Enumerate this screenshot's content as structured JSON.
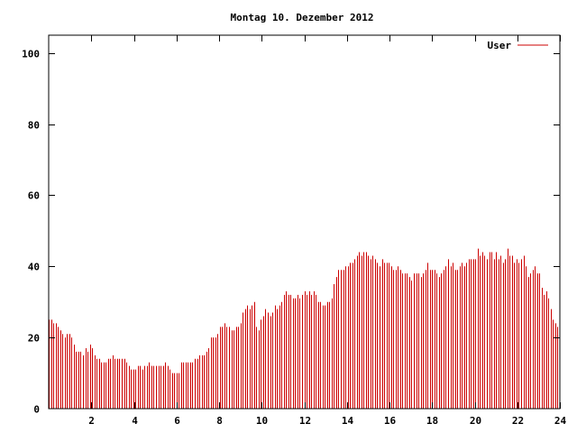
{
  "chart_data": {
    "type": "bar",
    "title": "Montag 10. Dezember 2012",
    "xlabel": "",
    "ylabel": "",
    "xlim": [
      0,
      24
    ],
    "ylim": [
      0,
      105
    ],
    "xticks": [
      2,
      4,
      6,
      8,
      10,
      12,
      14,
      16,
      18,
      20,
      22,
      24
    ],
    "yticks": [
      0,
      20,
      40,
      60,
      80,
      100
    ],
    "grid": false,
    "legend": {
      "position": "top-right",
      "entries": [
        "User"
      ]
    },
    "series": [
      {
        "name": "User",
        "color": "#cc0000",
        "sample_interval_hours": 0.0833,
        "values": [
          25,
          25,
          24,
          24,
          23,
          22,
          21,
          20,
          21,
          21,
          20,
          18,
          16,
          16,
          16,
          15,
          17,
          16,
          18,
          17,
          15,
          14,
          14,
          13,
          13,
          13,
          14,
          14,
          15,
          14,
          14,
          14,
          14,
          14,
          13,
          12,
          11,
          11,
          11,
          12,
          12,
          11,
          12,
          12,
          13,
          12,
          12,
          12,
          12,
          12,
          12,
          13,
          12,
          11,
          10,
          10,
          10,
          10,
          13,
          13,
          13,
          13,
          13,
          13,
          14,
          14,
          15,
          15,
          15,
          16,
          17,
          20,
          20,
          20,
          21,
          23,
          23,
          24,
          23,
          23,
          22,
          22,
          23,
          23,
          24,
          27,
          28,
          29,
          28,
          29,
          30,
          23,
          22,
          25,
          26,
          28,
          27,
          26,
          27,
          29,
          28,
          29,
          30,
          32,
          33,
          32,
          32,
          31,
          31,
          32,
          31,
          32,
          33,
          32,
          33,
          32,
          33,
          32,
          30,
          30,
          29,
          29,
          30,
          30,
          31,
          35,
          37,
          39,
          39,
          39,
          40,
          40,
          41,
          41,
          42,
          43,
          44,
          43,
          44,
          44,
          43,
          42,
          43,
          42,
          41,
          40,
          42,
          41,
          41,
          41,
          40,
          39,
          39,
          40,
          39,
          38,
          38,
          38,
          37,
          36,
          38,
          38,
          38,
          37,
          38,
          39,
          41,
          39,
          39,
          39,
          38,
          37,
          38,
          39,
          40,
          42,
          40,
          41,
          39,
          39,
          40,
          41,
          40,
          41,
          42,
          42,
          42,
          42,
          45,
          43,
          44,
          43,
          42,
          44,
          44,
          42,
          44,
          42,
          43,
          41,
          42,
          45,
          43,
          43,
          41,
          42,
          41,
          42,
          43,
          40,
          37,
          38,
          39,
          40,
          38,
          38,
          34,
          32,
          33,
          31,
          28,
          25,
          24,
          23
        ]
      }
    ]
  }
}
